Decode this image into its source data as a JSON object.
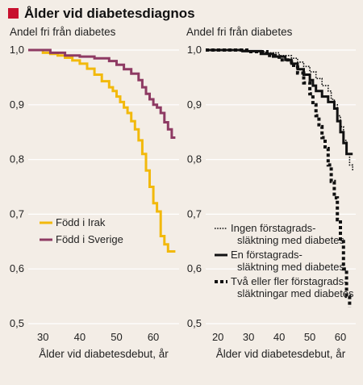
{
  "figure": {
    "title": "Ålder vid diabetesdiagnos",
    "accent_color": "#c8102e",
    "background_color": "#f3ede6"
  },
  "chart_data": [
    {
      "type": "line",
      "step": true,
      "ylabel": "Andel fri från diabetes",
      "xlabel": "Ålder vid diabetesdebut, år",
      "xlim": [
        26,
        67
      ],
      "ylim": [
        0.5,
        1.0
      ],
      "xticks": [
        "30",
        "40",
        "50",
        "60"
      ],
      "yticks": [
        "1,0",
        "0,9",
        "0,8",
        "0,7",
        "0,6",
        "0,5"
      ],
      "ytick_values": [
        1.0,
        0.9,
        0.8,
        0.7,
        0.6,
        0.5
      ],
      "grid": true,
      "legend_position": "bottom-left",
      "series": [
        {
          "name": "Född i Irak",
          "color": "#f2b90c",
          "style": "solid",
          "x": [
            26,
            30,
            32,
            34,
            36,
            38,
            40,
            42,
            44,
            46,
            48,
            49,
            50,
            51,
            52,
            53,
            54,
            55,
            56,
            57,
            58,
            59,
            60,
            61,
            62,
            63,
            64,
            66
          ],
          "y": [
            1.0,
            0.995,
            0.993,
            0.99,
            0.986,
            0.981,
            0.975,
            0.966,
            0.955,
            0.943,
            0.932,
            0.925,
            0.915,
            0.905,
            0.895,
            0.885,
            0.87,
            0.855,
            0.835,
            0.81,
            0.78,
            0.75,
            0.72,
            0.705,
            0.66,
            0.645,
            0.632,
            0.632
          ]
        },
        {
          "name": "Född i Sverige",
          "color": "#8e3a63",
          "style": "solid",
          "x": [
            26,
            32,
            36,
            40,
            44,
            48,
            50,
            52,
            54,
            56,
            57,
            58,
            59,
            60,
            61,
            62,
            63,
            64,
            65,
            66
          ],
          "y": [
            1.0,
            0.995,
            0.99,
            0.988,
            0.985,
            0.98,
            0.973,
            0.965,
            0.957,
            0.945,
            0.932,
            0.92,
            0.91,
            0.9,
            0.895,
            0.885,
            0.868,
            0.855,
            0.84,
            0.84
          ]
        }
      ]
    },
    {
      "type": "line",
      "step": true,
      "ylabel": "Andel fri från diabetes",
      "xlabel": "Ålder vid diabetesdebut, år",
      "xlim": [
        16,
        65
      ],
      "ylim": [
        0.5,
        1.0
      ],
      "xticks": [
        "20",
        "30",
        "40",
        "50",
        "60"
      ],
      "yticks": [
        "1,0",
        "0,9",
        "0,8",
        "0,7",
        "0,6",
        "0,5"
      ],
      "ytick_values": [
        1.0,
        0.9,
        0.8,
        0.7,
        0.6,
        0.5
      ],
      "grid": true,
      "legend_position": "bottom-left",
      "series": [
        {
          "name": "Ingen förstagrads-släktning med diabetes",
          "label_lines": [
            "Ingen förstagrads-",
            "släktning med diabetes"
          ],
          "color": "#111111",
          "style": "dotted",
          "x": [
            16,
            30,
            36,
            40,
            44,
            46,
            48,
            50,
            52,
            54,
            56,
            57,
            58,
            59,
            60,
            61,
            62,
            63,
            64
          ],
          "y": [
            1.0,
            0.997,
            0.995,
            0.99,
            0.985,
            0.978,
            0.97,
            0.96,
            0.948,
            0.935,
            0.925,
            0.91,
            0.9,
            0.88,
            0.86,
            0.835,
            0.81,
            0.79,
            0.78
          ]
        },
        {
          "name": "En förstagrads-släktning med diabetes",
          "label_lines": [
            "En förstagrads-",
            "släktning med diabetes"
          ],
          "color": "#111111",
          "style": "solid",
          "x": [
            16,
            28,
            34,
            38,
            42,
            44,
            46,
            48,
            50,
            51,
            52,
            54,
            56,
            58,
            59,
            60,
            61,
            62,
            64
          ],
          "y": [
            1.0,
            0.998,
            0.993,
            0.988,
            0.982,
            0.975,
            0.965,
            0.955,
            0.945,
            0.935,
            0.925,
            0.915,
            0.905,
            0.893,
            0.87,
            0.85,
            0.83,
            0.81,
            0.81
          ]
        },
        {
          "name": "Två eller fler förstagrads-släktingar med diabetes",
          "label_lines": [
            "Två eller fler förstagrads-",
            "släktningar med diabetes"
          ],
          "color": "#111111",
          "style": "dashed",
          "x": [
            16,
            30,
            36,
            40,
            44,
            46,
            48,
            50,
            51,
            52,
            53,
            54,
            55,
            56,
            57,
            58,
            59,
            60,
            61,
            62,
            63
          ],
          "y": [
            1.0,
            0.997,
            0.99,
            0.982,
            0.972,
            0.958,
            0.94,
            0.92,
            0.9,
            0.88,
            0.86,
            0.84,
            0.82,
            0.79,
            0.76,
            0.73,
            0.69,
            0.65,
            0.6,
            0.55,
            0.53
          ]
        }
      ]
    }
  ]
}
